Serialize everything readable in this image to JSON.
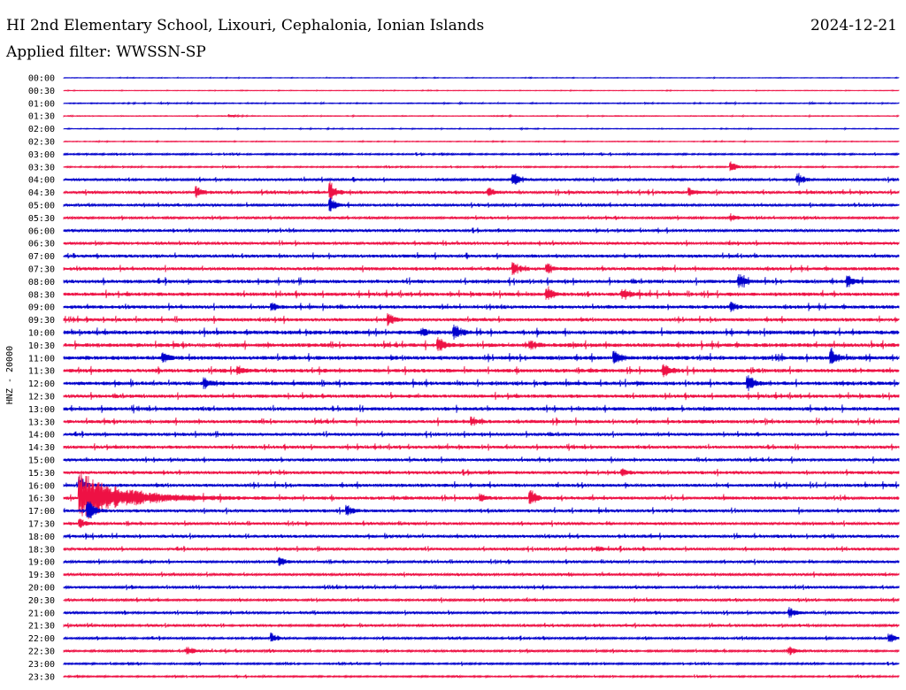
{
  "header": {
    "title": "HI 2nd Elementary School, Lixouri, Cephalonia, Ionian Islands",
    "date": "2024-12-21",
    "filter": "Applied filter: WWSSN-SP"
  },
  "chart_data": {
    "type": "line",
    "subtype": "helicorder",
    "title": "HI 2nd Elementary School, Lixouri, Cephalonia, Ionian Islands",
    "ylabel": "HNZ - 20000",
    "colors": [
      "#0000cc",
      "#ee1144"
    ],
    "row_labels": [
      "00:00",
      "00:30",
      "01:00",
      "01:30",
      "02:00",
      "02:30",
      "03:00",
      "03:30",
      "04:00",
      "04:30",
      "05:00",
      "05:30",
      "06:00",
      "06:30",
      "07:00",
      "07:30",
      "08:00",
      "08:30",
      "09:00",
      "09:30",
      "10:00",
      "10:30",
      "11:00",
      "11:30",
      "12:00",
      "12:30",
      "13:00",
      "13:30",
      "14:00",
      "14:30",
      "15:00",
      "15:30",
      "16:00",
      "16:30",
      "17:00",
      "17:30",
      "18:00",
      "18:30",
      "19:00",
      "19:30",
      "20:00",
      "20:30",
      "21:00",
      "21:30",
      "22:00",
      "22:30",
      "23:00",
      "23:30"
    ],
    "noise_levels": [
      0.3,
      0.3,
      0.5,
      0.4,
      0.4,
      0.4,
      0.8,
      0.7,
      1.2,
      1.4,
      1.2,
      1.1,
      1.3,
      1.3,
      1.5,
      1.6,
      1.8,
      1.8,
      1.7,
      1.6,
      2.0,
      2.0,
      2.0,
      1.9,
      1.9,
      1.7,
      1.8,
      1.7,
      1.5,
      1.5,
      1.4,
      1.5,
      1.6,
      1.6,
      1.5,
      1.3,
      1.4,
      1.3,
      1.2,
      1.2,
      1.1,
      1.1,
      1.1,
      1.1,
      1.0,
      1.0,
      0.9,
      0.8
    ],
    "events": [
      {
        "row": 3,
        "pos": 0.2,
        "amp": 1.5
      },
      {
        "row": 7,
        "pos": 0.8,
        "amp": 6
      },
      {
        "row": 8,
        "pos": 0.54,
        "amp": 7
      },
      {
        "row": 8,
        "pos": 0.88,
        "amp": 7
      },
      {
        "row": 9,
        "pos": 0.16,
        "amp": 8
      },
      {
        "row": 9,
        "pos": 0.32,
        "amp": 12
      },
      {
        "row": 9,
        "pos": 0.51,
        "amp": 5
      },
      {
        "row": 9,
        "pos": 0.75,
        "amp": 5
      },
      {
        "row": 10,
        "pos": 0.32,
        "amp": 8
      },
      {
        "row": 11,
        "pos": 0.8,
        "amp": 4
      },
      {
        "row": 15,
        "pos": 0.54,
        "amp": 7
      },
      {
        "row": 15,
        "pos": 0.58,
        "amp": 6
      },
      {
        "row": 16,
        "pos": 0.81,
        "amp": 8
      },
      {
        "row": 16,
        "pos": 0.94,
        "amp": 7
      },
      {
        "row": 17,
        "pos": 0.58,
        "amp": 8
      },
      {
        "row": 17,
        "pos": 0.67,
        "amp": 4
      },
      {
        "row": 18,
        "pos": 0.25,
        "amp": 4
      },
      {
        "row": 18,
        "pos": 0.8,
        "amp": 6
      },
      {
        "row": 19,
        "pos": 0.39,
        "amp": 7
      },
      {
        "row": 20,
        "pos": 0.47,
        "amp": 8
      },
      {
        "row": 20,
        "pos": 0.43,
        "amp": 5
      },
      {
        "row": 21,
        "pos": 0.45,
        "amp": 9
      },
      {
        "row": 21,
        "pos": 0.56,
        "amp": 5
      },
      {
        "row": 22,
        "pos": 0.12,
        "amp": 5
      },
      {
        "row": 22,
        "pos": 0.66,
        "amp": 8
      },
      {
        "row": 22,
        "pos": 0.92,
        "amp": 9
      },
      {
        "row": 23,
        "pos": 0.21,
        "amp": 5
      },
      {
        "row": 23,
        "pos": 0.72,
        "amp": 8
      },
      {
        "row": 24,
        "pos": 0.17,
        "amp": 5
      },
      {
        "row": 24,
        "pos": 0.82,
        "amp": 10
      },
      {
        "row": 27,
        "pos": 0.49,
        "amp": 5
      },
      {
        "row": 31,
        "pos": 0.67,
        "amp": 4
      },
      {
        "row": 32,
        "pos": 0.02,
        "amp": 12
      },
      {
        "row": 33,
        "pos": 0.02,
        "amp": 30
      },
      {
        "row": 33,
        "pos": 0.5,
        "amp": 5
      },
      {
        "row": 33,
        "pos": 0.56,
        "amp": 9
      },
      {
        "row": 34,
        "pos": 0.03,
        "amp": 14
      },
      {
        "row": 34,
        "pos": 0.34,
        "amp": 6
      },
      {
        "row": 35,
        "pos": 0.02,
        "amp": 6
      },
      {
        "row": 37,
        "pos": 0.64,
        "amp": 4
      },
      {
        "row": 38,
        "pos": 0.26,
        "amp": 5
      },
      {
        "row": 42,
        "pos": 0.87,
        "amp": 6
      },
      {
        "row": 44,
        "pos": 0.25,
        "amp": 6
      },
      {
        "row": 44,
        "pos": 0.99,
        "amp": 6
      },
      {
        "row": 45,
        "pos": 0.15,
        "amp": 5
      },
      {
        "row": 45,
        "pos": 0.87,
        "amp": 5
      }
    ]
  }
}
